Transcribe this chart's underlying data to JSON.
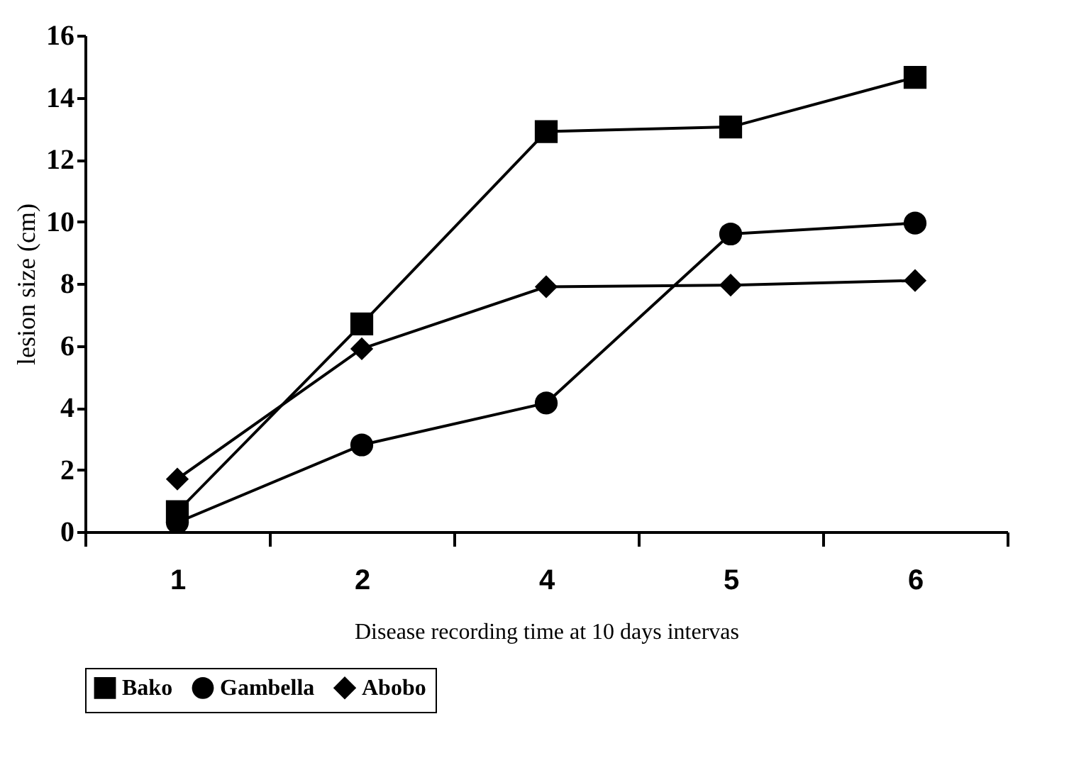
{
  "chart_data": {
    "type": "line",
    "xlabel": "Disease recording time at 10 days intervas",
    "ylabel": "lesion size (cm)",
    "categories": [
      "1",
      "2",
      "4",
      "5",
      "6"
    ],
    "series": [
      {
        "name": "Bako",
        "color": "#000000",
        "marker": "square",
        "values": [
          0.65,
          6.7,
          12.9,
          13.05,
          14.65
        ]
      },
      {
        "name": "Gambella",
        "color": "#000000",
        "marker": "circle",
        "values": [
          0.3,
          2.8,
          4.15,
          9.6,
          9.95
        ]
      },
      {
        "name": "Abobo",
        "color": "#000000",
        "marker": "diamond",
        "values": [
          1.7,
          5.9,
          7.9,
          7.95,
          8.1
        ]
      }
    ],
    "ylim": [
      0,
      16
    ],
    "yticks": [
      0,
      2,
      4,
      6,
      8,
      10,
      12,
      14,
      16
    ],
    "grid": false,
    "legend": "bottom",
    "line_style": "solid"
  }
}
